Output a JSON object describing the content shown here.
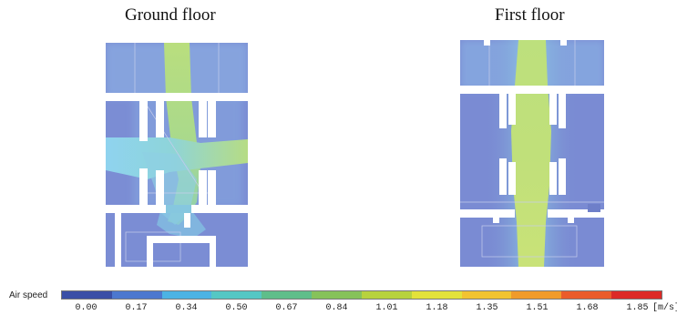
{
  "titles": {
    "ground": "Ground floor",
    "first": "First floor"
  },
  "legend": {
    "label": "Air speed",
    "unit": "[m/s]",
    "ticks": [
      "0.00",
      "0.17",
      "0.34",
      "0.50",
      "0.67",
      "0.84",
      "1.01",
      "1.18",
      "1.35",
      "1.51",
      "1.68",
      "1.85"
    ],
    "colors": [
      "#3a4fa6",
      "#4c78cf",
      "#4cb3e4",
      "#55c7c4",
      "#5fbe8a",
      "#86c25a",
      "#b7d23e",
      "#e3e23a",
      "#f2c331",
      "#f09b2b",
      "#ea5c2b",
      "#dc2a26"
    ]
  },
  "colors": {
    "room_fill": "#7d8fd3",
    "wall": "#ffffff",
    "corridor_flow": "#b5dd80",
    "jet_flow": "#8fd2ea",
    "faint_line": "#c4cbe8"
  }
}
